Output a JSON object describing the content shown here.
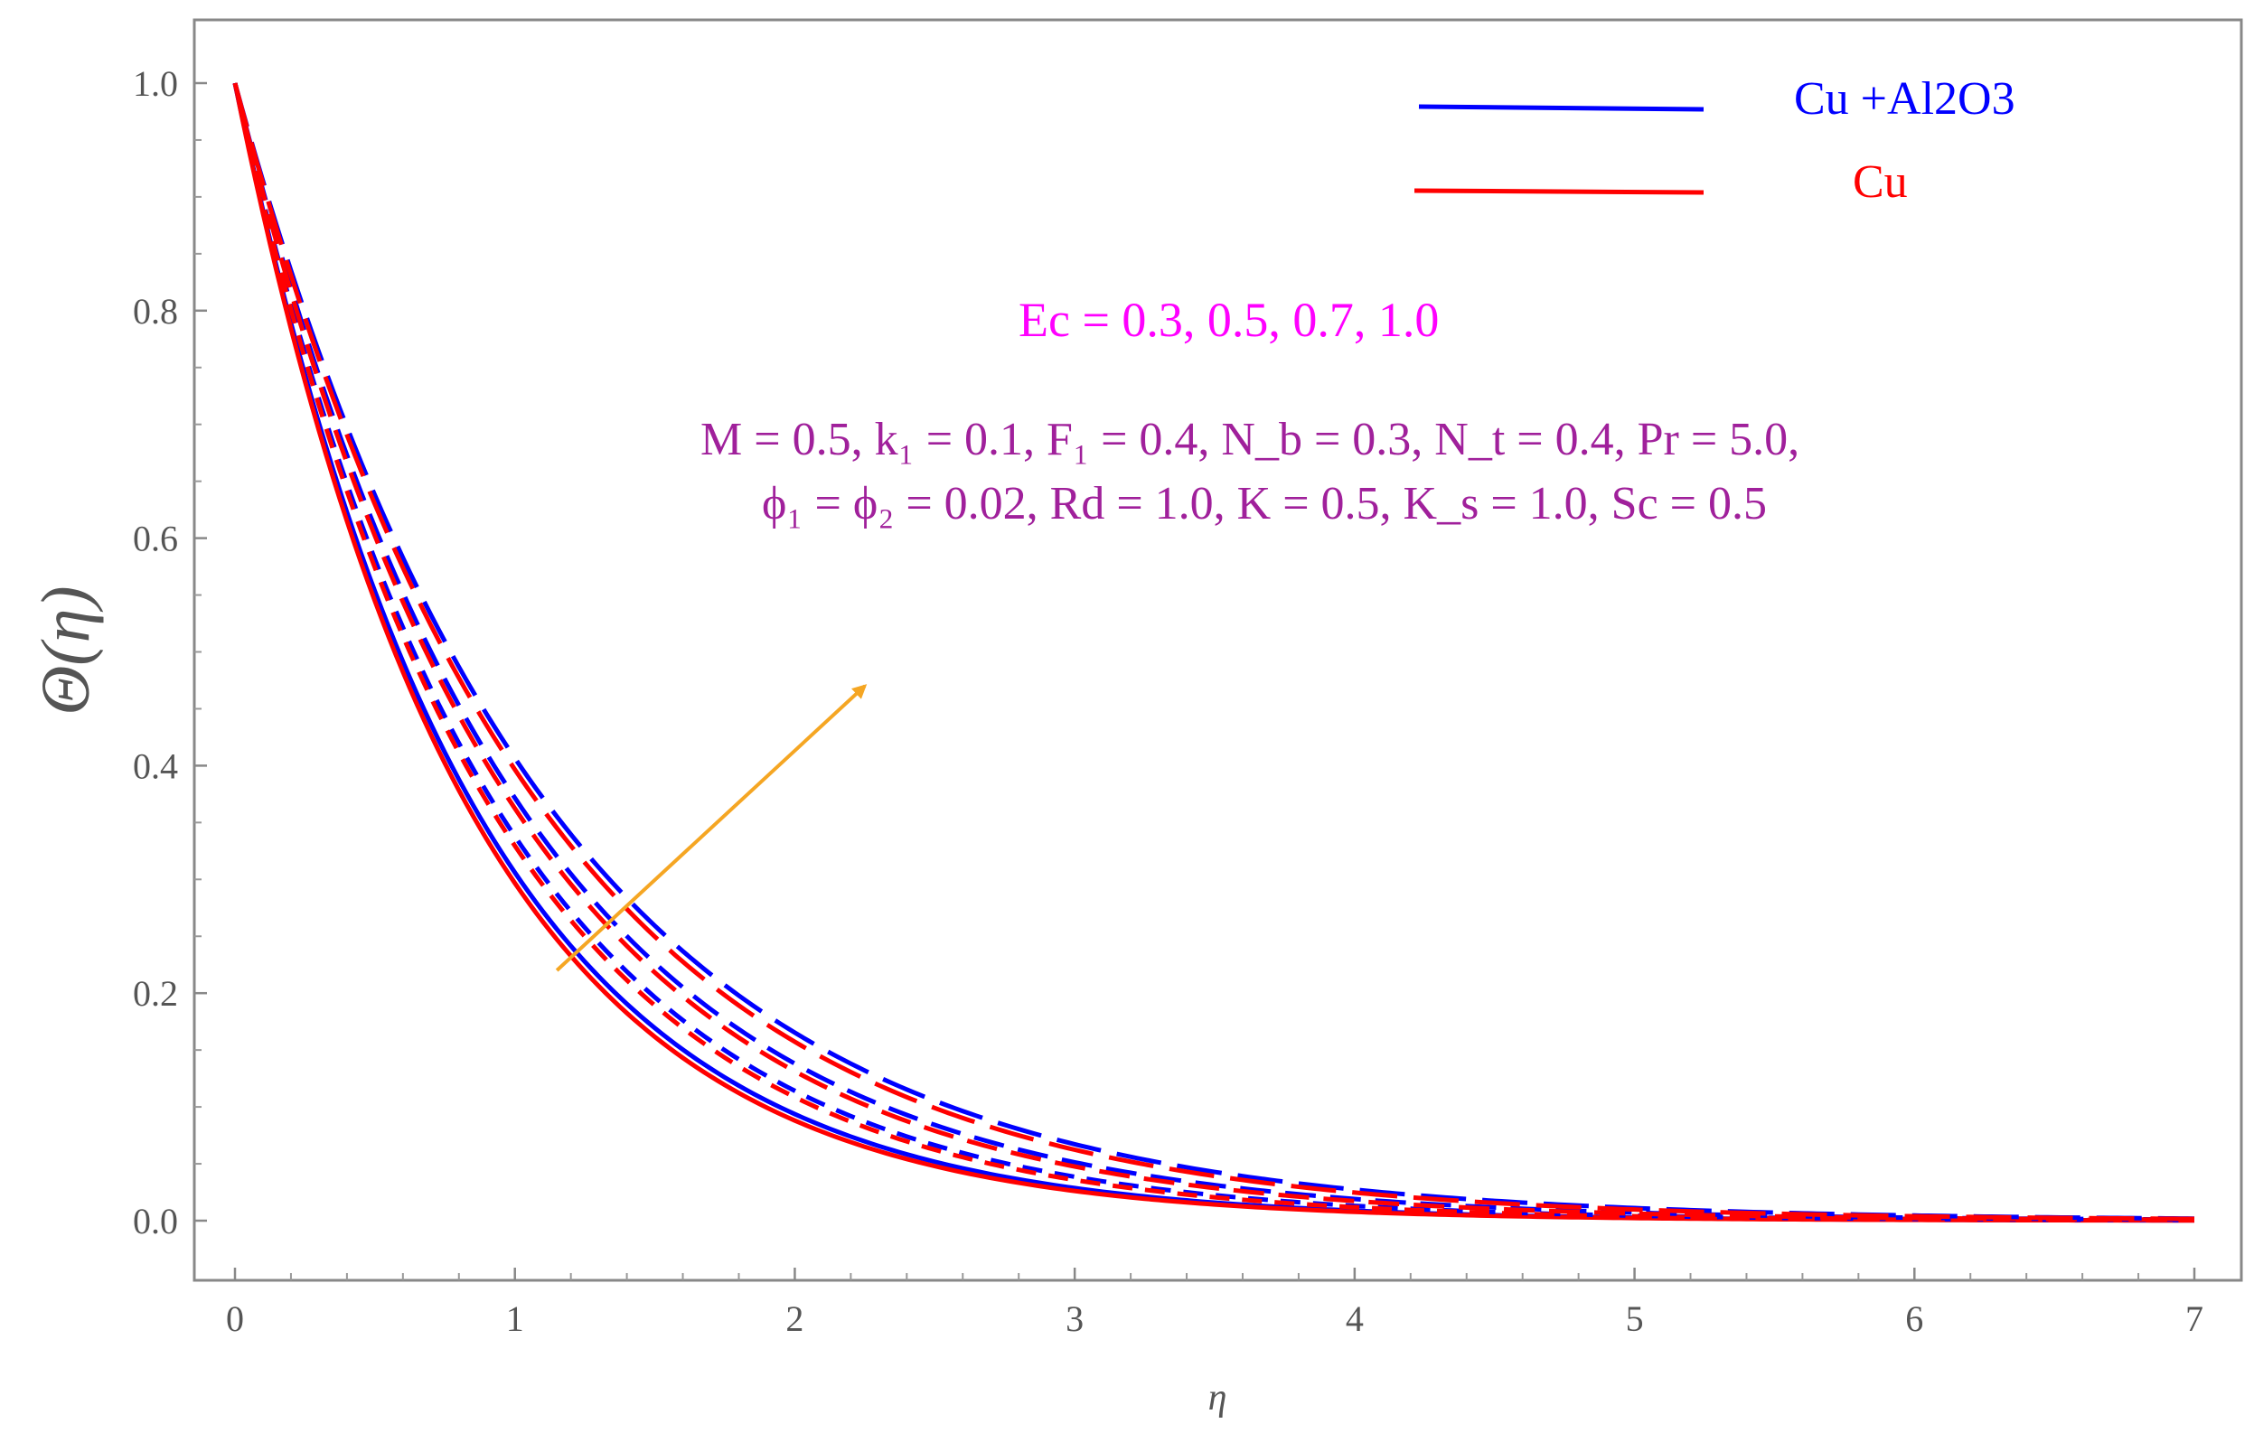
{
  "chart_data": {
    "type": "line",
    "title": "",
    "xlabel": "η",
    "ylabel": "Θ(η)",
    "xlim": [
      0,
      7
    ],
    "ylim": [
      -0.05,
      1.06
    ],
    "x_ticks": [
      "0",
      "1",
      "2",
      "3",
      "4",
      "5",
      "6",
      "7"
    ],
    "y_ticks": [
      "0.0",
      "0.2",
      "0.4",
      "0.6",
      "0.8",
      "1.0"
    ],
    "grid": false,
    "legend": {
      "placement": "top-right",
      "entries": [
        {
          "label": "Cu +Al2O3",
          "color": "#0000ff"
        },
        {
          "label": "Cu",
          "color": "#ff0000"
        }
      ]
    },
    "annotations": {
      "ec_text": "Ec = 0.3, 0.5, 0.7, 1.0",
      "params_line1": "M = 0.5, k₁ = 0.1, F₁ = 0.4, N_b = 0.3, N_t = 0.4, Pr = 5.0,",
      "params_line2": "ϕ₁ = ϕ₂ = 0.02, Rd = 1.0, K = 0.5, K_s = 1.0, Sc = 0.5",
      "arrow": {
        "from": [
          1.15,
          0.22
        ],
        "to": [
          2.25,
          0.47
        ],
        "color": "#f5a623"
      }
    },
    "series": [
      {
        "name": "Cu +Al2O3",
        "parameter": "Ec = 0.3",
        "color": "#0000ff",
        "style": "solid",
        "decay": 1.184
      },
      {
        "name": "Cu",
        "parameter": "Ec = 0.3",
        "color": "#ff0000",
        "style": "solid",
        "decay": 1.215
      },
      {
        "name": "Cu +Al2O3",
        "parameter": "Ec = 0.5",
        "color": "#0000ff",
        "style": "dashed-1",
        "decay": 1.085
      },
      {
        "name": "Cu",
        "parameter": "Ec = 0.5",
        "color": "#ff0000",
        "style": "dashed-1",
        "decay": 1.11
      },
      {
        "name": "Cu +Al2O3",
        "parameter": "Ec = 0.7",
        "color": "#0000ff",
        "style": "dashed-2",
        "decay": 0.99
      },
      {
        "name": "Cu",
        "parameter": "Ec = 0.7",
        "color": "#ff0000",
        "style": "dashed-2",
        "decay": 1.015
      },
      {
        "name": "Cu +Al2O3",
        "parameter": "Ec = 1.0",
        "color": "#0000ff",
        "style": "dashed-3",
        "decay": 0.9
      },
      {
        "name": "Cu",
        "parameter": "Ec = 1.0",
        "color": "#ff0000",
        "style": "dashed-3",
        "decay": 0.925
      }
    ]
  }
}
